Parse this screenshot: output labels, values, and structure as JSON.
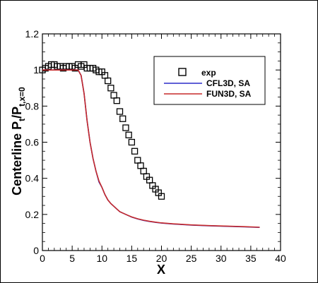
{
  "chart_data": {
    "type": "line",
    "xlabel": "X",
    "ylabel": {
      "base": "Centerline P",
      "sub1": "t",
      "slash": "/P",
      "sub2": "t,x=0"
    },
    "xlim": [
      0,
      40
    ],
    "ylim": [
      0,
      1.2
    ],
    "xticks": [
      "0",
      "5",
      "10",
      "15",
      "20",
      "25",
      "30",
      "35",
      "40"
    ],
    "yticks": [
      "0",
      "0.2",
      "0.4",
      "0.6",
      "0.8",
      "1",
      "1.2"
    ],
    "grid": false,
    "legend_position": "top-right",
    "series": [
      {
        "name": "exp",
        "kind": "scatter",
        "marker": "square",
        "color": "#000000",
        "x": [
          0.0,
          0.5,
          1.0,
          1.5,
          2.0,
          2.5,
          3.0,
          3.5,
          4.0,
          4.5,
          5.0,
          5.5,
          6.0,
          6.5,
          7.0,
          7.5,
          8.0,
          8.5,
          9.0,
          9.5,
          10.0,
          10.5,
          11.0,
          11.5,
          12.0,
          12.5,
          13.0,
          13.5,
          14.0,
          14.5,
          15.0,
          15.5,
          16.0,
          16.5,
          17.0,
          17.5,
          18.0,
          18.5,
          19.0,
          19.5,
          20.0
        ],
        "y": [
          1.0,
          1.01,
          1.02,
          1.03,
          1.03,
          1.02,
          1.02,
          1.01,
          1.02,
          1.02,
          1.02,
          1.01,
          1.03,
          1.02,
          1.03,
          1.01,
          1.01,
          1.01,
          1.0,
          0.99,
          0.99,
          0.97,
          0.94,
          0.9,
          0.86,
          0.83,
          0.77,
          0.73,
          0.68,
          0.64,
          0.6,
          0.55,
          0.5,
          0.47,
          0.44,
          0.41,
          0.39,
          0.36,
          0.34,
          0.32,
          0.3
        ]
      },
      {
        "name": "CFL3D, SA",
        "kind": "line",
        "color": "#2b2bc8",
        "x": [
          0,
          1,
          2,
          3,
          4,
          5,
          6,
          6.5,
          7,
          7.5,
          8,
          8.5,
          9,
          9.5,
          10,
          10.5,
          11,
          11.5,
          12,
          12.5,
          13,
          14,
          15,
          16,
          17,
          18,
          19,
          20,
          22,
          25,
          28,
          31,
          34,
          36.5
        ],
        "y": [
          1.0,
          1.0,
          1.0,
          1.0,
          1.0,
          1.0,
          1.0,
          0.97,
          0.87,
          0.72,
          0.6,
          0.51,
          0.44,
          0.38,
          0.35,
          0.31,
          0.28,
          0.26,
          0.245,
          0.23,
          0.215,
          0.2,
          0.185,
          0.175,
          0.167,
          0.161,
          0.156,
          0.152,
          0.147,
          0.141,
          0.137,
          0.134,
          0.131,
          0.128
        ]
      },
      {
        "name": "FUN3D, SA",
        "kind": "line",
        "color": "#c62a2a",
        "x": [
          0,
          1,
          2,
          3,
          4,
          5,
          6,
          6.5,
          7,
          7.5,
          8,
          8.5,
          9,
          9.5,
          10,
          10.5,
          11,
          11.5,
          12,
          12.5,
          13,
          14,
          15,
          16,
          17,
          18,
          19,
          20,
          22,
          25,
          28,
          31,
          34,
          36.5
        ],
        "y": [
          1.0,
          1.0,
          1.0,
          1.0,
          1.0,
          1.0,
          1.0,
          0.97,
          0.87,
          0.72,
          0.6,
          0.51,
          0.44,
          0.385,
          0.35,
          0.31,
          0.28,
          0.26,
          0.245,
          0.23,
          0.215,
          0.2,
          0.186,
          0.176,
          0.168,
          0.162,
          0.157,
          0.153,
          0.148,
          0.142,
          0.138,
          0.135,
          0.132,
          0.129
        ]
      }
    ]
  }
}
